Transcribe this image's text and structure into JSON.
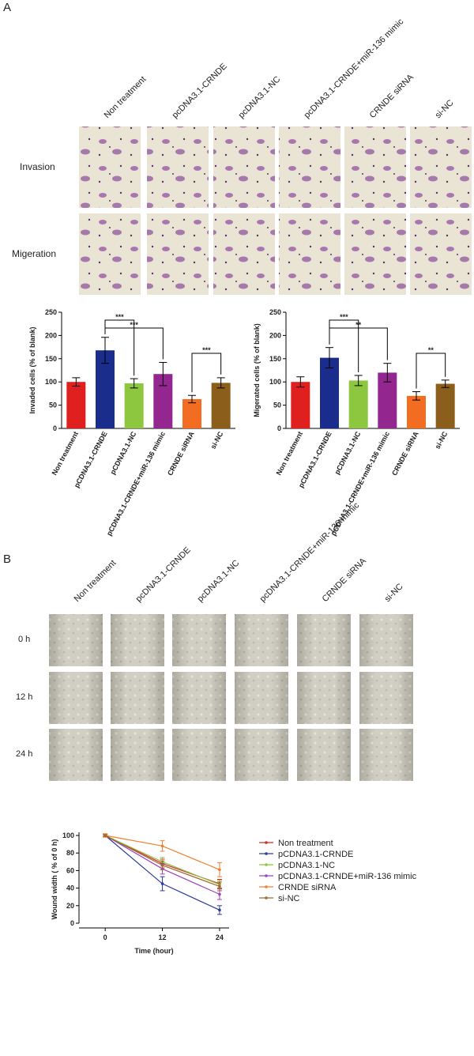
{
  "panel_a": {
    "label": "A",
    "columns": [
      "Non treatment",
      "pcDNA3.1-CRNDE",
      "pcDNA3.1-NC",
      "pcDNA3.1-CRNDE+miR-136 mimic",
      "CRNDE siRNA",
      "si-NC"
    ],
    "rows": [
      "Invasion",
      "Migeration"
    ]
  },
  "panel_b": {
    "label": "B",
    "columns": [
      "Non treatment",
      "pcDNA3.1-CRNDE",
      "pcDNA3.1-NC",
      "pcDNA3.1-CRNDE+miR-136 mimic",
      "CRNDE siRNA",
      "si-NC"
    ],
    "rows": [
      "0 h",
      "12 h",
      "24 h"
    ]
  },
  "chart_data": [
    {
      "type": "bar",
      "y_label": "Invaded cells (% of blank)",
      "categories": [
        "Non treatment",
        "pCDNA3.1-CRNDE",
        "pCDNA3.1-NC",
        "pCDNA3.1-CRNDE+miR-136 mimic",
        "CRNDE siRNA",
        "si-NC"
      ],
      "values": [
        100,
        168,
        97,
        117,
        63,
        98
      ],
      "errors": [
        9,
        28,
        10,
        25,
        8,
        11
      ],
      "colors": [
        "#e0201f",
        "#1a2c8c",
        "#8dc63f",
        "#93278f",
        "#f26c22",
        "#8b5e1b"
      ],
      "ylim": [
        0,
        250
      ],
      "yticks": [
        0,
        50,
        100,
        150,
        200,
        250
      ],
      "annotations": [
        "***",
        "***",
        "***"
      ]
    },
    {
      "type": "bar",
      "y_label": "Migerated cells (% of blank)",
      "categories": [
        "Non treatment",
        "pCDNA3.1-CRNDE",
        "pCDNA3.1-NC",
        "pCDNA3.1-CRNDE+miR-136 mimic",
        "CRNDE siRNA",
        "si-NC"
      ],
      "values": [
        100,
        152,
        103,
        120,
        70,
        96
      ],
      "errors": [
        11,
        22,
        11,
        20,
        9,
        8
      ],
      "colors": [
        "#e0201f",
        "#1a2c8c",
        "#8dc63f",
        "#93278f",
        "#f26c22",
        "#8b5e1b"
      ],
      "ylim": [
        0,
        250
      ],
      "yticks": [
        0,
        50,
        100,
        150,
        200,
        250
      ],
      "annotations": [
        "***",
        "**",
        "**"
      ]
    },
    {
      "type": "line",
      "y_label": "Wound width ( % of 0 h)",
      "x_label": "Time (hour)",
      "x": [
        0,
        12,
        24
      ],
      "xlim": [
        -5.5,
        26
      ],
      "xticks": [
        0,
        12,
        24
      ],
      "ylim": [
        0,
        100
      ],
      "yticks": [
        0,
        20,
        40,
        60,
        80,
        100
      ],
      "series": [
        {
          "name": "Non treatment",
          "color": "#d42a2a",
          "values": [
            100,
            68,
            45
          ],
          "errors": [
            1,
            5,
            5
          ]
        },
        {
          "name": "pCDNA3.1-CRNDE",
          "color": "#2a3c9c",
          "values": [
            100,
            45,
            15
          ],
          "errors": [
            1,
            8,
            5
          ]
        },
        {
          "name": "pCDNA3.1-NC",
          "color": "#8dc63f",
          "values": [
            100,
            70,
            44
          ],
          "errors": [
            1,
            5,
            5
          ]
        },
        {
          "name": "pCDNA3.1-CRNDE+miR-136 mimic",
          "color": "#a040c0",
          "values": [
            100,
            62,
            33
          ],
          "errors": [
            1,
            6,
            6
          ]
        },
        {
          "name": "CRNDE siRNA",
          "color": "#f08030",
          "values": [
            100,
            88,
            61
          ],
          "errors": [
            2,
            6,
            8
          ]
        },
        {
          "name": "si-NC",
          "color": "#9a6a30",
          "values": [
            100,
            66,
            42
          ],
          "errors": [
            1,
            5,
            5
          ]
        }
      ]
    }
  ]
}
